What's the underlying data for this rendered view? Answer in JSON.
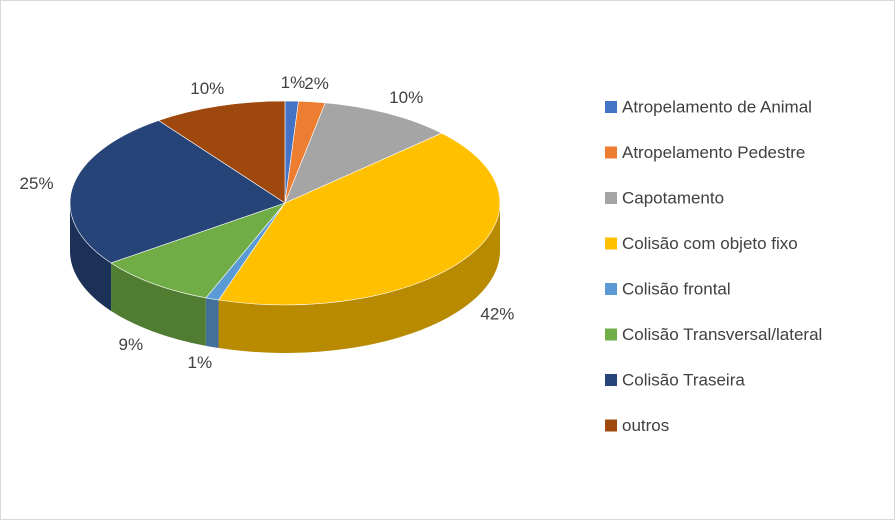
{
  "chart_data": {
    "type": "pie",
    "categories": [
      "Atropelamento de Animal",
      "Atropelamento Pedestre",
      "Capotamento",
      "Colisão com objeto fixo",
      "Colisão frontal",
      "Colisão Transversal/lateral",
      "Colisão Traseira",
      "outros"
    ],
    "values": [
      1,
      2,
      10,
      42,
      1,
      9,
      25,
      10
    ],
    "value_labels": [
      "1%",
      "2%",
      "10%",
      "42%",
      "1%",
      "9%",
      "25%",
      "10%"
    ],
    "colors": [
      "#4472c4",
      "#ed7d31",
      "#a5a5a5",
      "#ffc000",
      "#5b9bd5",
      "#70ad47",
      "#264478",
      "#9e480e"
    ],
    "legend": "right"
  }
}
